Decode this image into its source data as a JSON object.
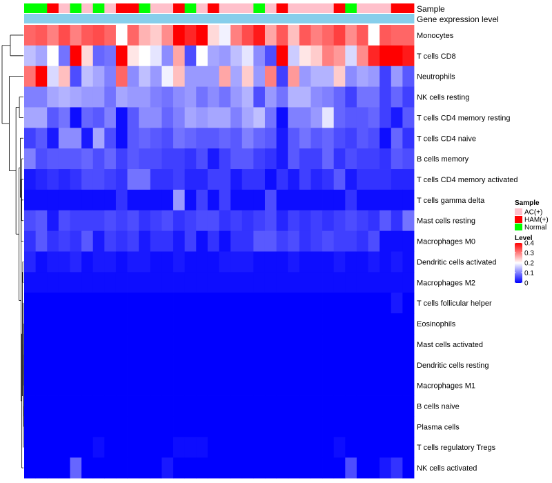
{
  "chart_data": {
    "type": "heatmap",
    "title": "",
    "column_annotations": [
      {
        "name": "Sample",
        "values": [
          "Normal",
          "Normal",
          "HAM(+)",
          "AC(+)",
          "Normal",
          "AC(+)",
          "Normal",
          "AC(+)",
          "HAM(+)",
          "HAM(+)",
          "Normal",
          "AC(+)",
          "AC(+)",
          "HAM(+)",
          "Normal",
          "AC(+)",
          "HAM(+)",
          "AC(+)",
          "AC(+)",
          "AC(+)",
          "Normal",
          "AC(+)",
          "HAM(+)",
          "AC(+)",
          "AC(+)",
          "AC(+)",
          "AC(+)",
          "HAM(+)",
          "Normal",
          "AC(+)",
          "AC(+)",
          "AC(+)",
          "HAM(+)",
          "HAM(+)"
        ]
      },
      {
        "name": "Gene expression level",
        "values": [
          "Level",
          "Level",
          "Level",
          "Level",
          "Level",
          "Level",
          "Level",
          "Level",
          "Level",
          "Level",
          "Level",
          "Level",
          "Level",
          "Level",
          "Level",
          "Level",
          "Level",
          "Level",
          "Level",
          "Level",
          "Level",
          "Level",
          "Level",
          "Level",
          "Level",
          "Level",
          "Level",
          "Level",
          "Level",
          "Level",
          "Level",
          "Level",
          "Level",
          "Level"
        ]
      }
    ],
    "rows": [
      {
        "label": "Monocytes",
        "values": [
          0.32,
          0.33,
          0.3,
          0.34,
          0.3,
          0.33,
          0.34,
          0.32,
          0.2,
          0.32,
          0.26,
          0.24,
          0.29,
          0.4,
          0.37,
          0.4,
          0.23,
          0.19,
          0.3,
          0.34,
          0.38,
          0.27,
          0.33,
          0.25,
          0.33,
          0.3,
          0.32,
          0.35,
          0.29,
          0.33,
          0.2,
          0.33,
          0.32,
          0.32
        ]
      },
      {
        "label": "T cells CD8",
        "values": [
          0.15,
          0.13,
          0.2,
          0.09,
          0.4,
          0.23,
          0.08,
          0.09,
          0.4,
          0.22,
          0.2,
          0.18,
          0.11,
          0.27,
          0.06,
          0.2,
          0.13,
          0.12,
          0.15,
          0.18,
          0.11,
          0.06,
          0.4,
          0.16,
          0.22,
          0.24,
          0.3,
          0.28,
          0.17,
          0.29,
          0.37,
          0.4,
          0.4,
          0.38
        ]
      },
      {
        "label": "Neutrophils",
        "values": [
          0.31,
          0.4,
          0.17,
          0.25,
          0.06,
          0.15,
          0.13,
          0.1,
          0.32,
          0.11,
          0.15,
          0.12,
          0.19,
          0.25,
          0.12,
          0.12,
          0.12,
          0.27,
          0.13,
          0.24,
          0.12,
          0.3,
          0.05,
          0.28,
          0.12,
          0.14,
          0.14,
          0.24,
          0.11,
          0.13,
          0.12,
          0.05,
          0.12,
          0.07
        ]
      },
      {
        "label": "NK cells resting",
        "values": [
          0.1,
          0.1,
          0.13,
          0.14,
          0.13,
          0.12,
          0.12,
          0.09,
          0.13,
          0.12,
          0.12,
          0.1,
          0.09,
          0.11,
          0.12,
          0.09,
          0.11,
          0.09,
          0.12,
          0.14,
          0.06,
          0.12,
          0.09,
          0.14,
          0.14,
          0.11,
          0.1,
          0.08,
          0.05,
          0.09,
          0.09,
          0.05,
          0.08,
          0.05
        ]
      },
      {
        "label": "T cells CD4 memory resting",
        "values": [
          0.13,
          0.13,
          0.07,
          0.09,
          0.01,
          0.08,
          0.07,
          0.1,
          0.01,
          0.07,
          0.11,
          0.11,
          0.08,
          0.1,
          0.13,
          0.12,
          0.13,
          0.13,
          0.1,
          0.13,
          0.15,
          0.09,
          0.01,
          0.1,
          0.1,
          0.12,
          0.18,
          0.08,
          0.07,
          0.07,
          0.08,
          0.05,
          0.02,
          0.07
        ]
      },
      {
        "label": "T cells CD4 naive",
        "values": [
          0.05,
          0.07,
          0.02,
          0.11,
          0.11,
          0.02,
          0.13,
          0.06,
          0.01,
          0.07,
          0.08,
          0.07,
          0.06,
          0.09,
          0.08,
          0.07,
          0.07,
          0.08,
          0.07,
          0.1,
          0.08,
          0.07,
          0.02,
          0.07,
          0.09,
          0.07,
          0.08,
          0.06,
          0.05,
          0.07,
          0.06,
          0.01,
          0.08,
          0.04
        ]
      },
      {
        "label": "B cells memory",
        "values": [
          0.1,
          0.06,
          0.07,
          0.07,
          0.07,
          0.08,
          0.06,
          0.08,
          0.05,
          0.07,
          0.06,
          0.06,
          0.05,
          0.05,
          0.04,
          0.06,
          0.02,
          0.05,
          0.07,
          0.07,
          0.05,
          0.04,
          0.02,
          0.07,
          0.05,
          0.05,
          0.08,
          0.04,
          0.06,
          0.05,
          0.05,
          0.04,
          0.07,
          0.06
        ]
      },
      {
        "label": "T cells CD4 memory activated",
        "values": [
          0.02,
          0.03,
          0.04,
          0.03,
          0.04,
          0.06,
          0.06,
          0.05,
          0.04,
          0.09,
          0.09,
          0.04,
          0.04,
          0.05,
          0.03,
          0.03,
          0.05,
          0.05,
          0.02,
          0.04,
          0.04,
          0.01,
          0.04,
          0.02,
          0.05,
          0.03,
          0.04,
          0.07,
          0.02,
          0.04,
          0.04,
          0.04,
          0.03,
          0.03
        ]
      },
      {
        "label": "T cells gamma delta",
        "values": [
          0.01,
          0.01,
          0.01,
          0.01,
          0.01,
          0.01,
          0.01,
          0.01,
          0.04,
          0.01,
          0.01,
          0.01,
          0.01,
          0.12,
          0.01,
          0.05,
          0.01,
          0.05,
          0.01,
          0.01,
          0.01,
          0.06,
          0.01,
          0.01,
          0.01,
          0.01,
          0.01,
          0.01,
          0.04,
          0.01,
          0.01,
          0.01,
          0.01,
          0.01
        ]
      },
      {
        "label": "Mast cells resting",
        "values": [
          0.06,
          0.07,
          0.02,
          0.06,
          0.05,
          0.05,
          0.05,
          0.06,
          0.05,
          0.06,
          0.04,
          0.05,
          0.06,
          0.04,
          0.05,
          0.06,
          0.06,
          0.04,
          0.05,
          0.04,
          0.05,
          0.06,
          0.03,
          0.05,
          0.04,
          0.05,
          0.04,
          0.05,
          0.06,
          0.05,
          0.04,
          0.07,
          0.04,
          0.09
        ]
      },
      {
        "label": "Macrophages M0",
        "values": [
          0.04,
          0.07,
          0.04,
          0.05,
          0.04,
          0.07,
          0.02,
          0.05,
          0.04,
          0.05,
          0.02,
          0.04,
          0.04,
          0.02,
          0.05,
          0.01,
          0.04,
          0.01,
          0.04,
          0.04,
          0.07,
          0.07,
          0.05,
          0.06,
          0.04,
          0.05,
          0.06,
          0.05,
          0.05,
          0.04,
          0.06,
          0.01,
          0.01,
          0.01
        ]
      },
      {
        "label": "Dendritic cells activated",
        "values": [
          0.03,
          0.01,
          0.02,
          0.02,
          0.03,
          0.01,
          0.02,
          0.02,
          0.01,
          0.02,
          0.02,
          0.01,
          0.01,
          0.02,
          0.01,
          0.01,
          0.01,
          0.02,
          0.02,
          0.02,
          0.01,
          0.01,
          0.01,
          0.02,
          0.01,
          0.01,
          0.01,
          0.02,
          0.01,
          0.01,
          0.02,
          0.01,
          0.02,
          0.01
        ]
      },
      {
        "label": "Macrophages M2",
        "values": [
          0.01,
          0.01,
          0.01,
          0.01,
          0.01,
          0.01,
          0.01,
          0.01,
          0.01,
          0.01,
          0.01,
          0.01,
          0.01,
          0.01,
          0.01,
          0.01,
          0.01,
          0.01,
          0.01,
          0.01,
          0.01,
          0.01,
          0.01,
          0.01,
          0.01,
          0.01,
          0.01,
          0.01,
          0.01,
          0.01,
          0.01,
          0.01,
          0.01,
          0.01
        ]
      },
      {
        "label": "T cells follicular helper",
        "values": [
          0.0,
          0.0,
          0.0,
          0.0,
          0.0,
          0.0,
          0.0,
          0.0,
          0.0,
          0.0,
          0.0,
          0.0,
          0.0,
          0.0,
          0.0,
          0.0,
          0.0,
          0.0,
          0.0,
          0.0,
          0.0,
          0.0,
          0.0,
          0.0,
          0.0,
          0.0,
          0.0,
          0.0,
          0.0,
          0.0,
          0.0,
          0.0,
          0.02,
          0.0
        ]
      },
      {
        "label": "Eosinophils",
        "values": [
          0.0,
          0.0,
          0.0,
          0.0,
          0.0,
          0.0,
          0.0,
          0.0,
          0.0,
          0.0,
          0.0,
          0.0,
          0.0,
          0.0,
          0.0,
          0.0,
          0.0,
          0.0,
          0.0,
          0.0,
          0.0,
          0.0,
          0.0,
          0.0,
          0.0,
          0.0,
          0.0,
          0.0,
          0.0,
          0.0,
          0.0,
          0.0,
          0.0,
          0.0
        ]
      },
      {
        "label": "Mast cells activated",
        "values": [
          0.0,
          0.0,
          0.0,
          0.0,
          0.0,
          0.0,
          0.0,
          0.0,
          0.0,
          0.0,
          0.0,
          0.0,
          0.0,
          0.0,
          0.0,
          0.0,
          0.0,
          0.0,
          0.0,
          0.0,
          0.0,
          0.0,
          0.0,
          0.0,
          0.0,
          0.0,
          0.0,
          0.0,
          0.0,
          0.0,
          0.0,
          0.0,
          0.0,
          0.0
        ]
      },
      {
        "label": "Dendritic cells resting",
        "values": [
          0.0,
          0.0,
          0.0,
          0.0,
          0.0,
          0.0,
          0.0,
          0.0,
          0.0,
          0.0,
          0.0,
          0.0,
          0.0,
          0.0,
          0.0,
          0.0,
          0.0,
          0.0,
          0.0,
          0.0,
          0.0,
          0.0,
          0.0,
          0.0,
          0.0,
          0.0,
          0.0,
          0.0,
          0.0,
          0.0,
          0.0,
          0.0,
          0.0,
          0.0
        ]
      },
      {
        "label": "Macrophages M1",
        "values": [
          0.0,
          0.0,
          0.0,
          0.0,
          0.0,
          0.0,
          0.0,
          0.0,
          0.0,
          0.0,
          0.0,
          0.0,
          0.0,
          0.0,
          0.0,
          0.0,
          0.0,
          0.0,
          0.0,
          0.0,
          0.0,
          0.0,
          0.0,
          0.0,
          0.0,
          0.0,
          0.0,
          0.0,
          0.0,
          0.0,
          0.0,
          0.0,
          0.0,
          0.0
        ]
      },
      {
        "label": "B cells naive",
        "values": [
          0.0,
          0.0,
          0.0,
          0.0,
          0.0,
          0.0,
          0.0,
          0.0,
          0.0,
          0.0,
          0.0,
          0.0,
          0.0,
          0.0,
          0.0,
          0.0,
          0.0,
          0.0,
          0.0,
          0.0,
          0.0,
          0.0,
          0.0,
          0.0,
          0.0,
          0.0,
          0.0,
          0.0,
          0.0,
          0.0,
          0.0,
          0.0,
          0.0,
          0.0
        ]
      },
      {
        "label": "Plasma cells",
        "values": [
          0.0,
          0.0,
          0.0,
          0.0,
          0.0,
          0.0,
          0.0,
          0.0,
          0.0,
          0.0,
          0.0,
          0.0,
          0.0,
          0.0,
          0.0,
          0.0,
          0.0,
          0.0,
          0.0,
          0.0,
          0.0,
          0.0,
          0.0,
          0.0,
          0.0,
          0.0,
          0.0,
          0.0,
          0.0,
          0.0,
          0.0,
          0.0,
          0.0,
          0.0
        ]
      },
      {
        "label": "T cells regulatory  Tregs",
        "values": [
          0.0,
          0.0,
          0.0,
          0.0,
          0.0,
          0.0,
          0.01,
          0.0,
          0.0,
          0.0,
          0.0,
          0.0,
          0.0,
          0.01,
          0.01,
          0.01,
          0.0,
          0.0,
          0.0,
          0.0,
          0.0,
          0.0,
          0.0,
          0.0,
          0.0,
          0.0,
          0.0,
          0.01,
          0.0,
          0.0,
          0.0,
          0.0,
          0.0,
          0.0
        ]
      },
      {
        "label": "NK cells activated",
        "values": [
          0.0,
          0.0,
          0.0,
          0.0,
          0.08,
          0.0,
          0.0,
          0.0,
          0.0,
          0.0,
          0.0,
          0.0,
          0.02,
          0.0,
          0.0,
          0.0,
          0.0,
          0.0,
          0.0,
          0.0,
          0.0,
          0.0,
          0.0,
          0.0,
          0.0,
          0.0,
          0.0,
          0.0,
          0.06,
          0.0,
          0.0,
          0.02,
          0.04,
          0.0
        ]
      }
    ],
    "sample_legend": {
      "title": "Sample",
      "items": [
        {
          "label": "AC(+)",
          "color": "#ffc0cb"
        },
        {
          "label": "HAM(+)",
          "color": "#ff0000"
        },
        {
          "label": "Normal",
          "color": "#00ff00"
        }
      ]
    },
    "expression_level_color": "#87ceeb",
    "level_legend": {
      "title": "Level",
      "ticks": [
        0.4,
        0.3,
        0.2,
        0.1,
        0
      ],
      "tick_labels": [
        "0.4",
        "0.3",
        "0.2",
        "0.1",
        "0"
      ],
      "range": [
        0,
        0.4
      ],
      "colors": {
        "low": "#0000ff",
        "mid": "#ffffff",
        "high": "#ff0000"
      },
      "midpoint": 0.2
    },
    "row_dendrogram": true,
    "column_clustering": false
  }
}
